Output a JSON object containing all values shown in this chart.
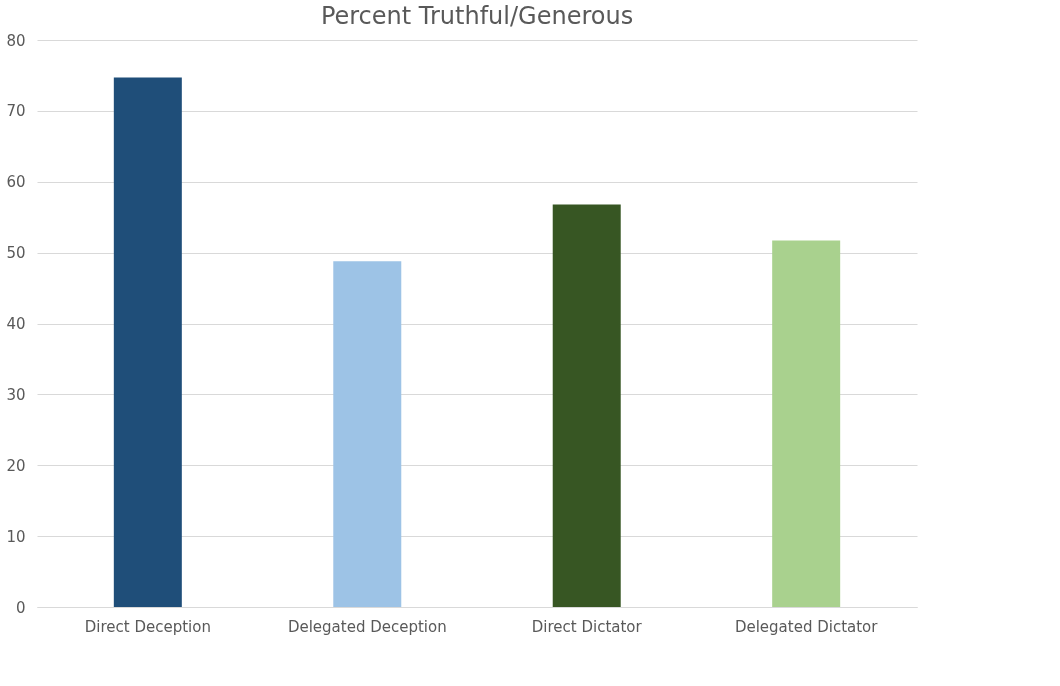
{
  "chart_data": {
    "type": "bar",
    "title": "Percent Truthful/Generous",
    "categories": [
      "Direct Deception",
      "Delegated Deception",
      "Direct Dictator",
      "Delegated Dictator"
    ],
    "values": [
      74.7,
      48.8,
      56.8,
      51.7
    ],
    "colors": [
      "#1f4e79",
      "#9dc3e6",
      "#375623",
      "#a9d18e"
    ],
    "ylim": [
      0,
      80
    ],
    "yticks": [
      0,
      10,
      20,
      30,
      40,
      50,
      60,
      70,
      80
    ],
    "grid": "y"
  }
}
